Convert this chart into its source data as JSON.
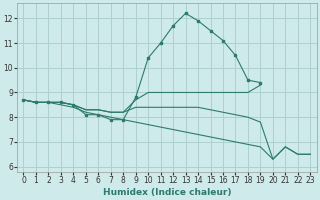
{
  "xlabel": "Humidex (Indice chaleur)",
  "ylabel": "",
  "xlim": [
    -0.5,
    23.5
  ],
  "ylim": [
    5.8,
    12.6
  ],
  "xtick_labels": [
    "0",
    "1",
    "2",
    "3",
    "4",
    "5",
    "6",
    "7",
    "8",
    "9",
    "10",
    "11",
    "12",
    "13",
    "14",
    "15",
    "16",
    "17",
    "18",
    "19",
    "20",
    "21",
    "22",
    "23"
  ],
  "xtick_positions": [
    0,
    1,
    2,
    3,
    4,
    5,
    6,
    7,
    8,
    9,
    10,
    11,
    12,
    13,
    14,
    15,
    16,
    17,
    18,
    19,
    20,
    21,
    22,
    23
  ],
  "yticks": [
    6,
    7,
    8,
    9,
    10,
    11,
    12
  ],
  "background_color": "#ceeaea",
  "grid_color": "#aed0d0",
  "line_color": "#2d7a6e",
  "series": [
    {
      "x": [
        0,
        1,
        2,
        3,
        4,
        5,
        6,
        7,
        8,
        9,
        10,
        11,
        12,
        13,
        14,
        15,
        16,
        17,
        18,
        19
      ],
      "y": [
        8.7,
        8.6,
        8.6,
        8.6,
        8.5,
        8.1,
        8.1,
        7.9,
        7.9,
        8.8,
        10.4,
        11.0,
        11.7,
        12.2,
        11.9,
        11.5,
        11.1,
        10.5,
        9.5,
        9.4
      ],
      "marker": true
    },
    {
      "x": [
        0,
        1,
        2,
        3,
        4,
        5,
        6,
        7,
        8,
        9,
        10,
        11,
        12,
        13,
        14,
        15,
        16,
        17,
        18,
        19
      ],
      "y": [
        8.7,
        8.6,
        8.6,
        8.6,
        8.5,
        8.3,
        8.3,
        8.2,
        8.2,
        8.7,
        9.0,
        9.0,
        9.0,
        9.0,
        9.0,
        9.0,
        9.0,
        9.0,
        9.0,
        9.3
      ],
      "marker": false
    },
    {
      "x": [
        0,
        1,
        2,
        3,
        4,
        5,
        6,
        7,
        8,
        9,
        10,
        11,
        12,
        13,
        14,
        15,
        16,
        17,
        18,
        19,
        20,
        21,
        22,
        23
      ],
      "y": [
        8.7,
        8.6,
        8.6,
        8.6,
        8.5,
        8.3,
        8.3,
        8.2,
        8.2,
        8.4,
        8.4,
        8.4,
        8.4,
        8.4,
        8.4,
        8.3,
        8.2,
        8.1,
        8.0,
        7.8,
        6.3,
        6.8,
        6.5,
        6.5
      ],
      "marker": false
    },
    {
      "x": [
        0,
        1,
        2,
        3,
        4,
        5,
        6,
        7,
        8,
        9,
        10,
        11,
        12,
        13,
        14,
        15,
        16,
        17,
        18,
        19,
        20,
        21,
        22,
        23
      ],
      "y": [
        8.7,
        8.6,
        8.6,
        8.5,
        8.4,
        8.2,
        8.1,
        8.0,
        7.9,
        7.8,
        7.7,
        7.6,
        7.5,
        7.4,
        7.3,
        7.2,
        7.1,
        7.0,
        6.9,
        6.8,
        6.3,
        6.8,
        6.5,
        6.5
      ],
      "marker": false
    }
  ]
}
